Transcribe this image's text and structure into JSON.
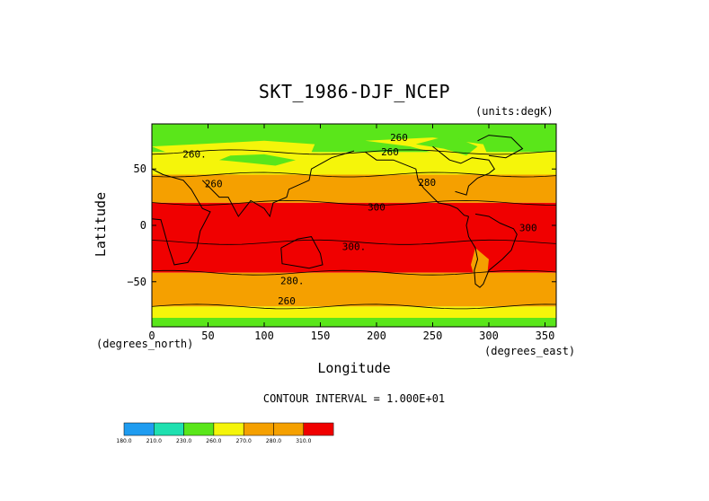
{
  "colors": {
    "c180": "#1f9cf0",
    "c210": "#1fe0b0",
    "c230": "#5ae61a",
    "c260": "#f5f50a",
    "c270": "#f5a000",
    "c280": "#f5a000",
    "c300": "#f00000"
  },
  "chart_data": {
    "type": "heatmap",
    "title": "SKT_1986-DJF_NCEP",
    "units": "(units:degK)",
    "xlabel": "Longitude",
    "ylabel": "Latitude",
    "x_unit_label": "(degrees_east)",
    "y_unit_label": "(degrees_north)",
    "xlim": [
      0,
      360
    ],
    "ylim": [
      -90,
      90
    ],
    "xticks": [
      0,
      50,
      100,
      150,
      200,
      250,
      300,
      350
    ],
    "yticks": [
      50,
      0,
      -50
    ],
    "ytick_labels": [
      "50",
      "0",
      "−50"
    ],
    "contour_interval": "CONTOUR INTERVAL = 1.000E+01",
    "contour_labels": [
      {
        "text": "260.",
        "lon": 38,
        "lat": 60
      },
      {
        "text": "260",
        "lon": 55,
        "lat": 34
      },
      {
        "text": "260",
        "lon": 220,
        "lat": 75
      },
      {
        "text": "260",
        "lon": 212,
        "lat": 62
      },
      {
        "text": "280",
        "lon": 245,
        "lat": 35
      },
      {
        "text": "300",
        "lon": 200,
        "lat": 13
      },
      {
        "text": "300",
        "lon": 335,
        "lat": -5
      },
      {
        "text": "300.",
        "lon": 180,
        "lat": -22
      },
      {
        "text": "280.",
        "lon": 125,
        "lat": -52
      },
      {
        "text": "260",
        "lon": 120,
        "lat": -70
      }
    ],
    "bands": [
      {
        "temp": 230,
        "lat": [
          65,
          90
        ]
      },
      {
        "temp": 260,
        "lat": [
          45,
          65
        ]
      },
      {
        "temp": 280,
        "lat": [
          20,
          45
        ]
      },
      {
        "temp": 300,
        "lat": [
          -42,
          20
        ]
      },
      {
        "temp": 280,
        "lat": [
          -72,
          -42
        ]
      },
      {
        "temp": 260,
        "lat": [
          -80,
          -72
        ]
      },
      {
        "temp": 230,
        "lat": [
          -90,
          -80
        ]
      }
    ],
    "legend": {
      "levels": [
        "180.0",
        "210.0",
        "230.0",
        "260.0",
        "270.0",
        "280.0",
        "310.0"
      ],
      "color_keys": [
        "c180",
        "c210",
        "c230",
        "c260",
        "c270",
        "c280",
        "c300"
      ]
    }
  }
}
